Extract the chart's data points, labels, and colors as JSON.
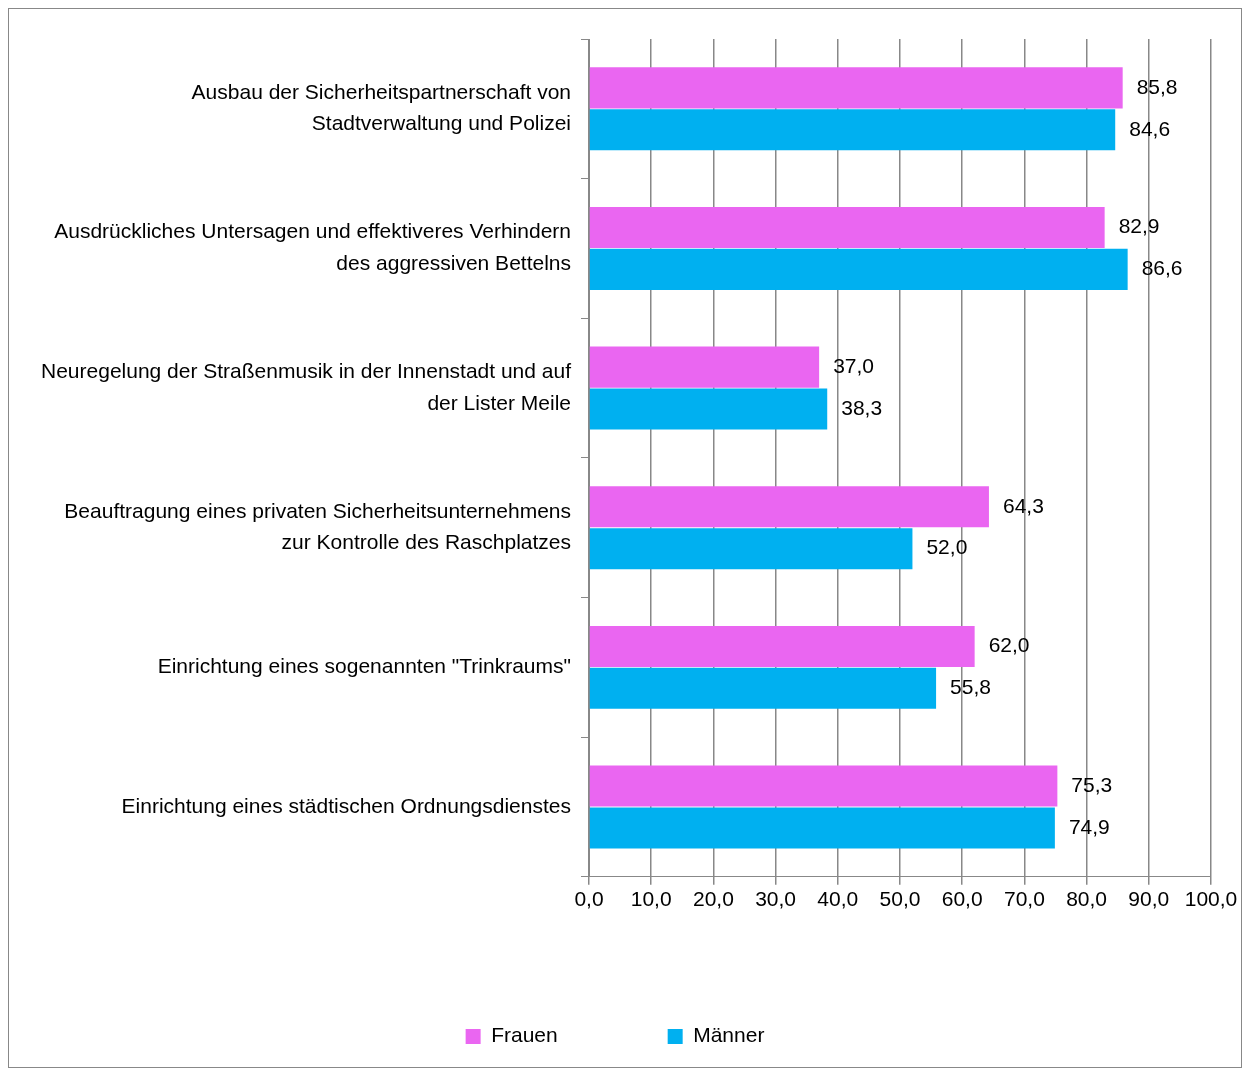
{
  "chart_data": {
    "type": "bar",
    "orientation": "horizontal",
    "categories": [
      "Ausbau der Sicherheitspartnerschaft von Stadtverwaltung und Polizei",
      "Ausdrückliches Untersagen und effektiveres Verhindern des aggressiven Bettelns",
      "Neuregelung der Straßenmusik in der Innenstadt und auf der Lister Meile",
      "Beauftragung eines privaten Sicherheitsunternehmens zur Kontrolle des Raschplatzes",
      "Einrichtung eines sogenannten \"Trinkraums\"",
      "Einrichtung eines städtischen Ordnungsdienstes"
    ],
    "series": [
      {
        "name": "Frauen",
        "color": "#ea66f1",
        "values": [
          85.8,
          82.9,
          37.0,
          64.3,
          62.0,
          75.3
        ],
        "value_labels": [
          "85,8",
          "82,9",
          "37,0",
          "64,3",
          "62,0",
          "75,3"
        ]
      },
      {
        "name": "Männer",
        "color": "#00b0f0",
        "values": [
          84.6,
          86.6,
          38.3,
          52.0,
          55.8,
          74.9
        ],
        "value_labels": [
          "84,6",
          "86,6",
          "38,3",
          "52,0",
          "55,8",
          "74,9"
        ]
      }
    ],
    "xlim": [
      0,
      100
    ],
    "xticks": [
      {
        "value": 0,
        "label": "0,0"
      },
      {
        "value": 10,
        "label": "10,0"
      },
      {
        "value": 20,
        "label": "20,0"
      },
      {
        "value": 30,
        "label": "30,0"
      },
      {
        "value": 40,
        "label": "40,0"
      },
      {
        "value": 50,
        "label": "50,0"
      },
      {
        "value": 60,
        "label": "60,0"
      },
      {
        "value": 70,
        "label": "70,0"
      },
      {
        "value": 80,
        "label": "80,0"
      },
      {
        "value": 90,
        "label": "90,0"
      },
      {
        "value": 100,
        "label": "100,0"
      }
    ],
    "grid": "x",
    "legend": "bottom"
  }
}
